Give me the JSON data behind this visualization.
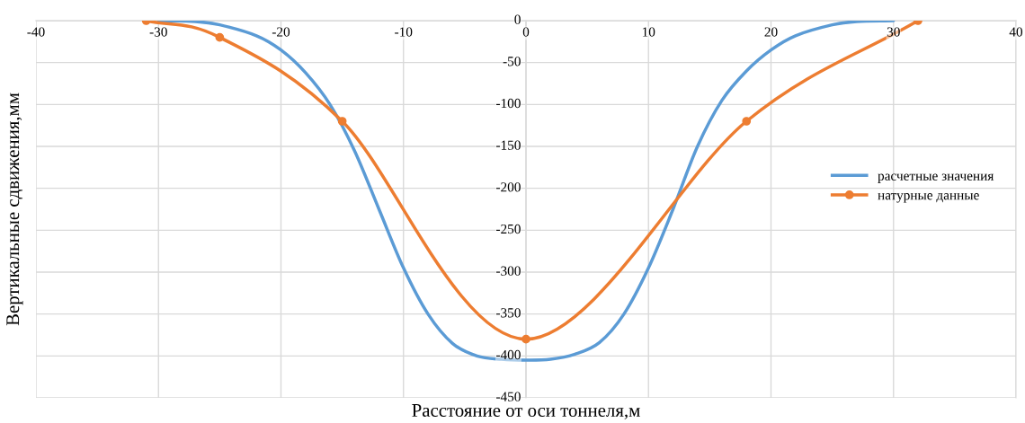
{
  "chart_data": {
    "type": "line",
    "xlabel": "Расстояние от оси тоннеля,м",
    "ylabel": "Вертикальные сдвижения,мм",
    "xlim": [
      -40,
      40
    ],
    "xticks": [
      -40,
      -30,
      -20,
      -10,
      0,
      10,
      20,
      30,
      40
    ],
    "ylim": [
      -450,
      0
    ],
    "yticks": [
      -450,
      -400,
      -350,
      -300,
      -250,
      -200,
      -150,
      -100,
      -50,
      0
    ],
    "grid": true,
    "legend": "right",
    "series": [
      {
        "name": "расчетные значения",
        "color": "#5b9bd5",
        "marker": "none",
        "x": [
          -30,
          -27,
          -25,
          -22,
          -20,
          -18,
          -16,
          -14,
          -12,
          -10,
          -8,
          -6,
          -4,
          -2,
          0,
          2,
          4,
          6,
          8,
          10,
          12,
          14,
          16,
          18,
          20,
          22,
          25,
          27,
          30
        ],
        "values": [
          0,
          -1,
          -5,
          -18,
          -35,
          -62,
          -100,
          -155,
          -225,
          -295,
          -350,
          -385,
          -400,
          -404,
          -405,
          -404,
          -398,
          -384,
          -350,
          -295,
          -225,
          -150,
          -95,
          -60,
          -35,
          -18,
          -5,
          -1,
          0
        ]
      },
      {
        "name": "натурные данные",
        "color": "#ed7d31",
        "marker": "circle",
        "x": [
          -31,
          -25,
          -15,
          0,
          18,
          32
        ],
        "values": [
          0,
          -20,
          -120,
          -380,
          -120,
          0
        ]
      }
    ]
  }
}
